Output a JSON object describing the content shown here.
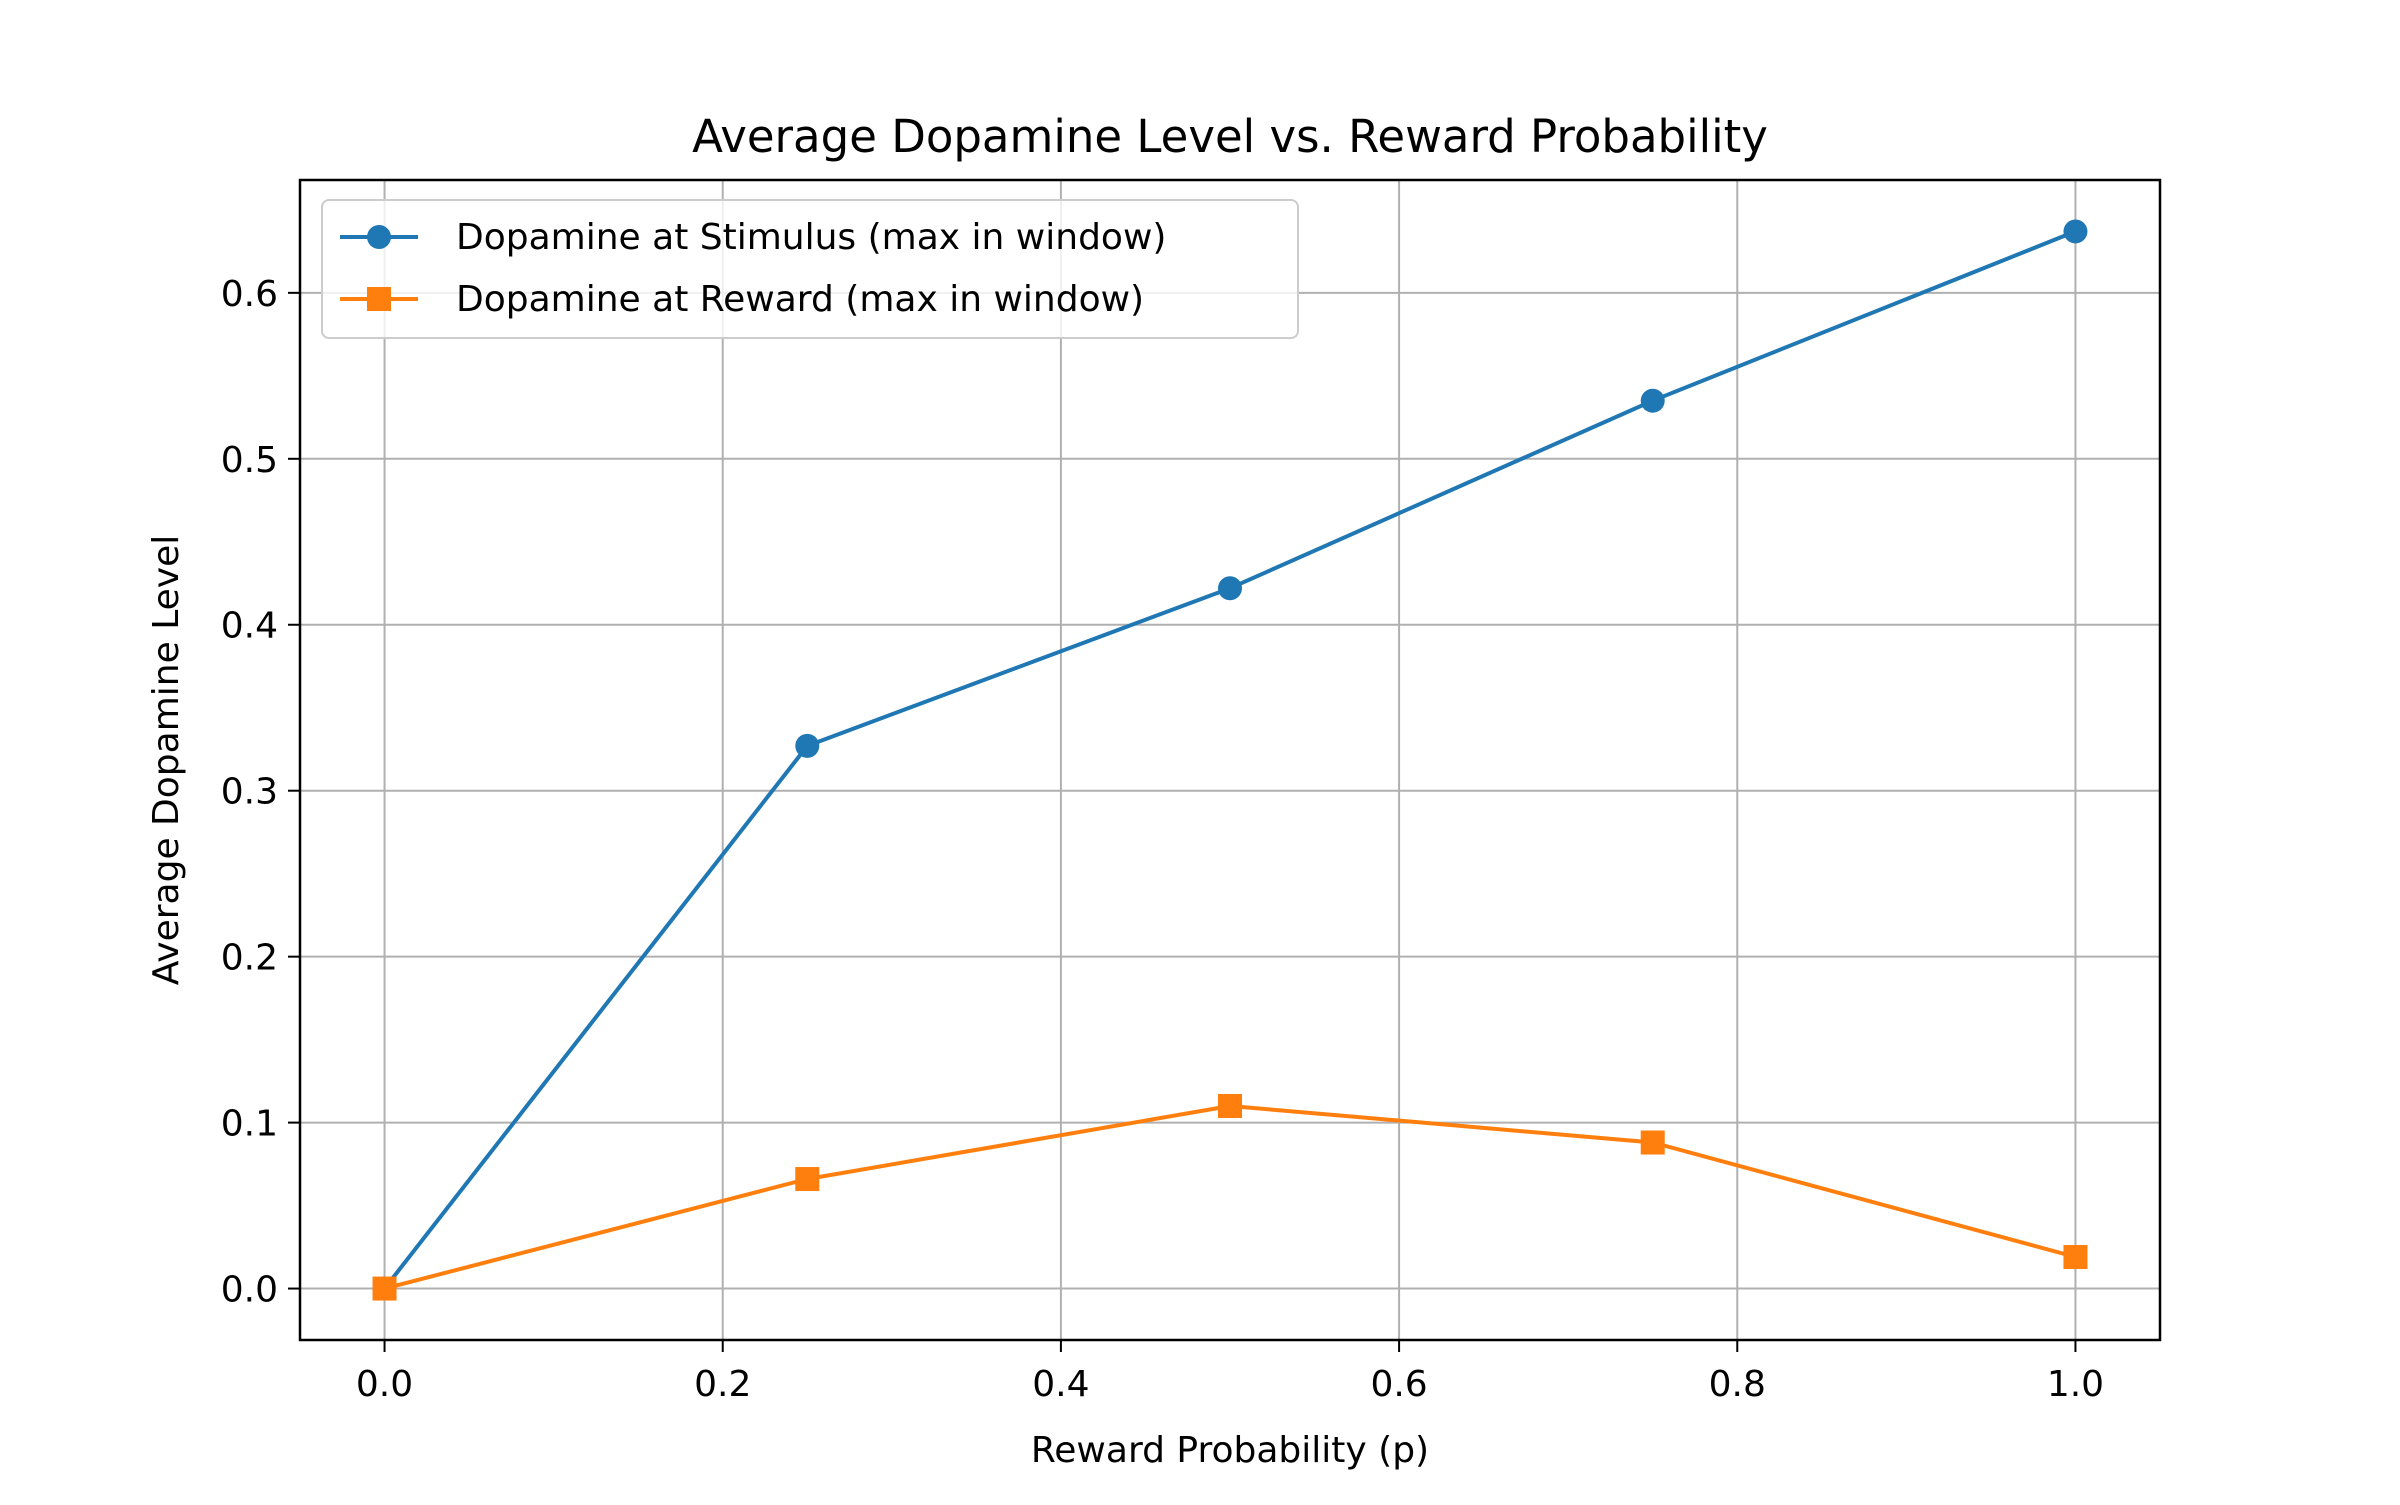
{
  "chart_data": {
    "type": "line",
    "title": "Average Dopamine Level vs. Reward Probability",
    "xlabel": "Reward Probability (p)",
    "ylabel": "Average Dopamine Level",
    "xlim": [
      -0.05,
      1.05
    ],
    "ylim": [
      -0.031,
      0.668
    ],
    "xticks": [
      0.0,
      0.2,
      0.4,
      0.6,
      0.8,
      1.0
    ],
    "xtick_labels": [
      "0.0",
      "0.2",
      "0.4",
      "0.6",
      "0.8",
      "1.0"
    ],
    "yticks": [
      0.0,
      0.1,
      0.2,
      0.3,
      0.4,
      0.5,
      0.6
    ],
    "ytick_labels": [
      "0.0",
      "0.1",
      "0.2",
      "0.3",
      "0.4",
      "0.5",
      "0.6"
    ],
    "grid": true,
    "legend_position": "top-left",
    "x": [
      0.0,
      0.25,
      0.5,
      0.75,
      1.0
    ],
    "series": [
      {
        "name": "Dopamine at Stimulus (max in window)",
        "values": [
          0.0,
          0.327,
          0.422,
          0.535,
          0.637
        ],
        "color": "#1f77b4",
        "marker": "circle"
      },
      {
        "name": "Dopamine at Reward (max in window)",
        "values": [
          0.0,
          0.066,
          0.11,
          0.088,
          0.019
        ],
        "color": "#ff7f0e",
        "marker": "square"
      }
    ]
  }
}
